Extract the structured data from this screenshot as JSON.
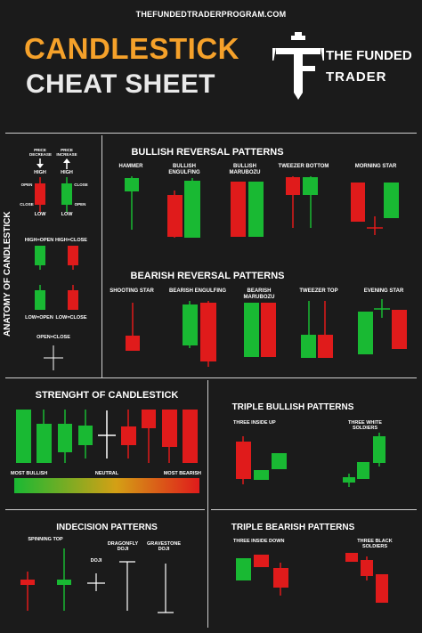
{
  "header": {
    "url": "THEFUNDEDTRADERPROGRAM.COM",
    "title_line1": "CANDLESTICK",
    "title_line2": "CHEAT SHEET",
    "brand_line1": "THE FUNDED",
    "brand_line2": "TRADER"
  },
  "anatomy": {
    "title": "ANATOMY OF CANDLESTICK",
    "price_decrease": "PRICE DECREASE",
    "price_increase": "PRICE INCREASE",
    "high_left": "HIGH",
    "high_right": "HIGH",
    "open": "OPEN",
    "close_left": "CLOSE",
    "close_right": "CLOSE",
    "open_right": "OPEN",
    "low_left": "LOW",
    "low_right": "LOW",
    "high_open": "HIGH=OPEN",
    "high_close": "HIGH=CLOSE",
    "low_open": "LOW=OPEN",
    "low_close": "LOW=CLOSE",
    "open_close": "OPEN=CLOSE"
  },
  "bullish_reversal": {
    "title": "BULLISH REVERSAL PATTERNS",
    "patterns": [
      "HAMMER",
      "BULLISH ENGULFING",
      "BULLISH MARUBOZU",
      "TWEEZER BOTTOM",
      "MORNING STAR"
    ]
  },
  "bearish_reversal": {
    "title": "BEARISH REVERSAL PATTERNS",
    "patterns": [
      "SHOOTING STAR",
      "BEARISH ENGULFING",
      "BEARISH MARUBOZU",
      "TWEEZER TOP",
      "EVENING STAR"
    ]
  },
  "strength": {
    "title": "STRENGHT OF CANDLESTICK",
    "most_bullish": "MOST BULLISH",
    "neutral": "NEUTRAL",
    "most_bearish": "MOST BEARISH"
  },
  "triple_bullish": {
    "title": "TRIPLE BULLISH PATTERNS",
    "left": "THREE INSIDE UP",
    "right": "THREE WHITE SOLDIERS"
  },
  "indecision": {
    "title": "INDECISION PATTERNS",
    "spinning_top": "SPINNING TOP",
    "doji": "DOJI",
    "dragonfly": "DRAGONFLY DOJI",
    "gravestone": "GRAVESTONE DOJI"
  },
  "triple_bearish": {
    "title": "TRIPLE BEARISH PATTERNS",
    "left": "THREE INSIDE DOWN",
    "right": "THREE BLACK SOLDIERS"
  },
  "colors": {
    "bull": "#19b933",
    "bear": "#e01b1b",
    "accent": "#f5a12a",
    "background": "#1b1b1b"
  }
}
